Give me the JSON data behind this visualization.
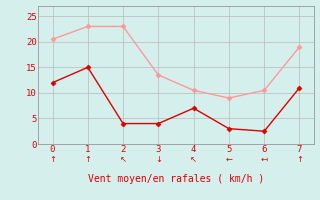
{
  "x": [
    0,
    1,
    2,
    3,
    4,
    5,
    6,
    7
  ],
  "y_moyen": [
    12,
    15,
    4,
    4,
    7,
    3,
    2.5,
    11
  ],
  "y_rafales": [
    20.5,
    23,
    23,
    13.5,
    10.5,
    9,
    10.5,
    19
  ],
  "color_moyen": "#dd0000",
  "color_rafales": "#ff9999",
  "bg_color": "#d5efec",
  "grid_color": "#bbbbbb",
  "xlabel": "Vent moyen/en rafales ( km/h )",
  "xlabel_color": "#dd0000",
  "tick_color": "#dd0000",
  "xlim": [
    -0.4,
    7.4
  ],
  "ylim": [
    0,
    27
  ],
  "yticks": [
    0,
    5,
    10,
    15,
    20,
    25
  ],
  "xticks": [
    0,
    1,
    2,
    3,
    4,
    5,
    6,
    7
  ],
  "wind_arrows": [
    "↑",
    "↑",
    "↖",
    "↓",
    "↖",
    "←",
    "↤",
    "↑"
  ]
}
